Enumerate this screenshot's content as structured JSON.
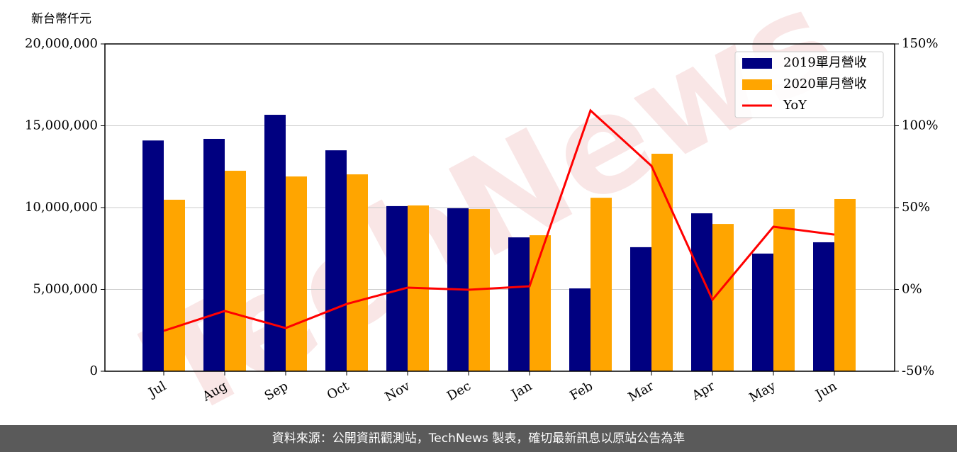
{
  "chart_data": {
    "type": "bar",
    "y_label": "新台幣仟元",
    "watermark": "TechNews",
    "categories": [
      "Jul",
      "Aug",
      "Sep",
      "Oct",
      "Nov",
      "Dec",
      "Jan",
      "Feb",
      "Mar",
      "Apr",
      "May",
      "Jun"
    ],
    "series": [
      {
        "name": "2019單月營收",
        "type": "bar",
        "color": "#000080",
        "values": [
          14100000,
          14200000,
          15670000,
          13500000,
          10090000,
          9960000,
          8180000,
          5060000,
          7580000,
          9650000,
          7190000,
          7880000
        ]
      },
      {
        "name": "2020單月營收",
        "type": "bar",
        "color": "#ffa500",
        "values": [
          10480000,
          12250000,
          11900000,
          12030000,
          10130000,
          9910000,
          8310000,
          10600000,
          13290000,
          9000000,
          9910000,
          10520000
        ]
      },
      {
        "name": "YoY",
        "type": "line",
        "axis": "y2",
        "color": "#ff0000",
        "values": [
          -25.3,
          -13.2,
          -23.6,
          -8.9,
          1.1,
          -0.2,
          1.9,
          109.3,
          75.5,
          -6.3,
          38.3,
          33.5
        ]
      }
    ],
    "ylim": [
      0,
      20000000
    ],
    "yticks": [
      0,
      {
        "value": 5000000,
        "label": "5,000,000"
      },
      {
        "value": 10000000,
        "label": "10,000,000"
      },
      {
        "value": 15000000,
        "label": "15,000,000"
      },
      {
        "value": 20000000,
        "label": "20,000,000"
      }
    ],
    "y2lim": [
      -50,
      150
    ],
    "y2ticks": [
      {
        "value": -50,
        "label": "-50%"
      },
      {
        "value": 0,
        "label": "0%"
      },
      {
        "value": 50,
        "label": "50%"
      },
      {
        "value": 100,
        "label": "100%"
      },
      {
        "value": 150,
        "label": "150%"
      }
    ],
    "grid": true,
    "legend": "upper right",
    "footer": "資料來源：公開資訊觀測站，TechNews 製表，確切最新訊息以原站公告為準"
  }
}
